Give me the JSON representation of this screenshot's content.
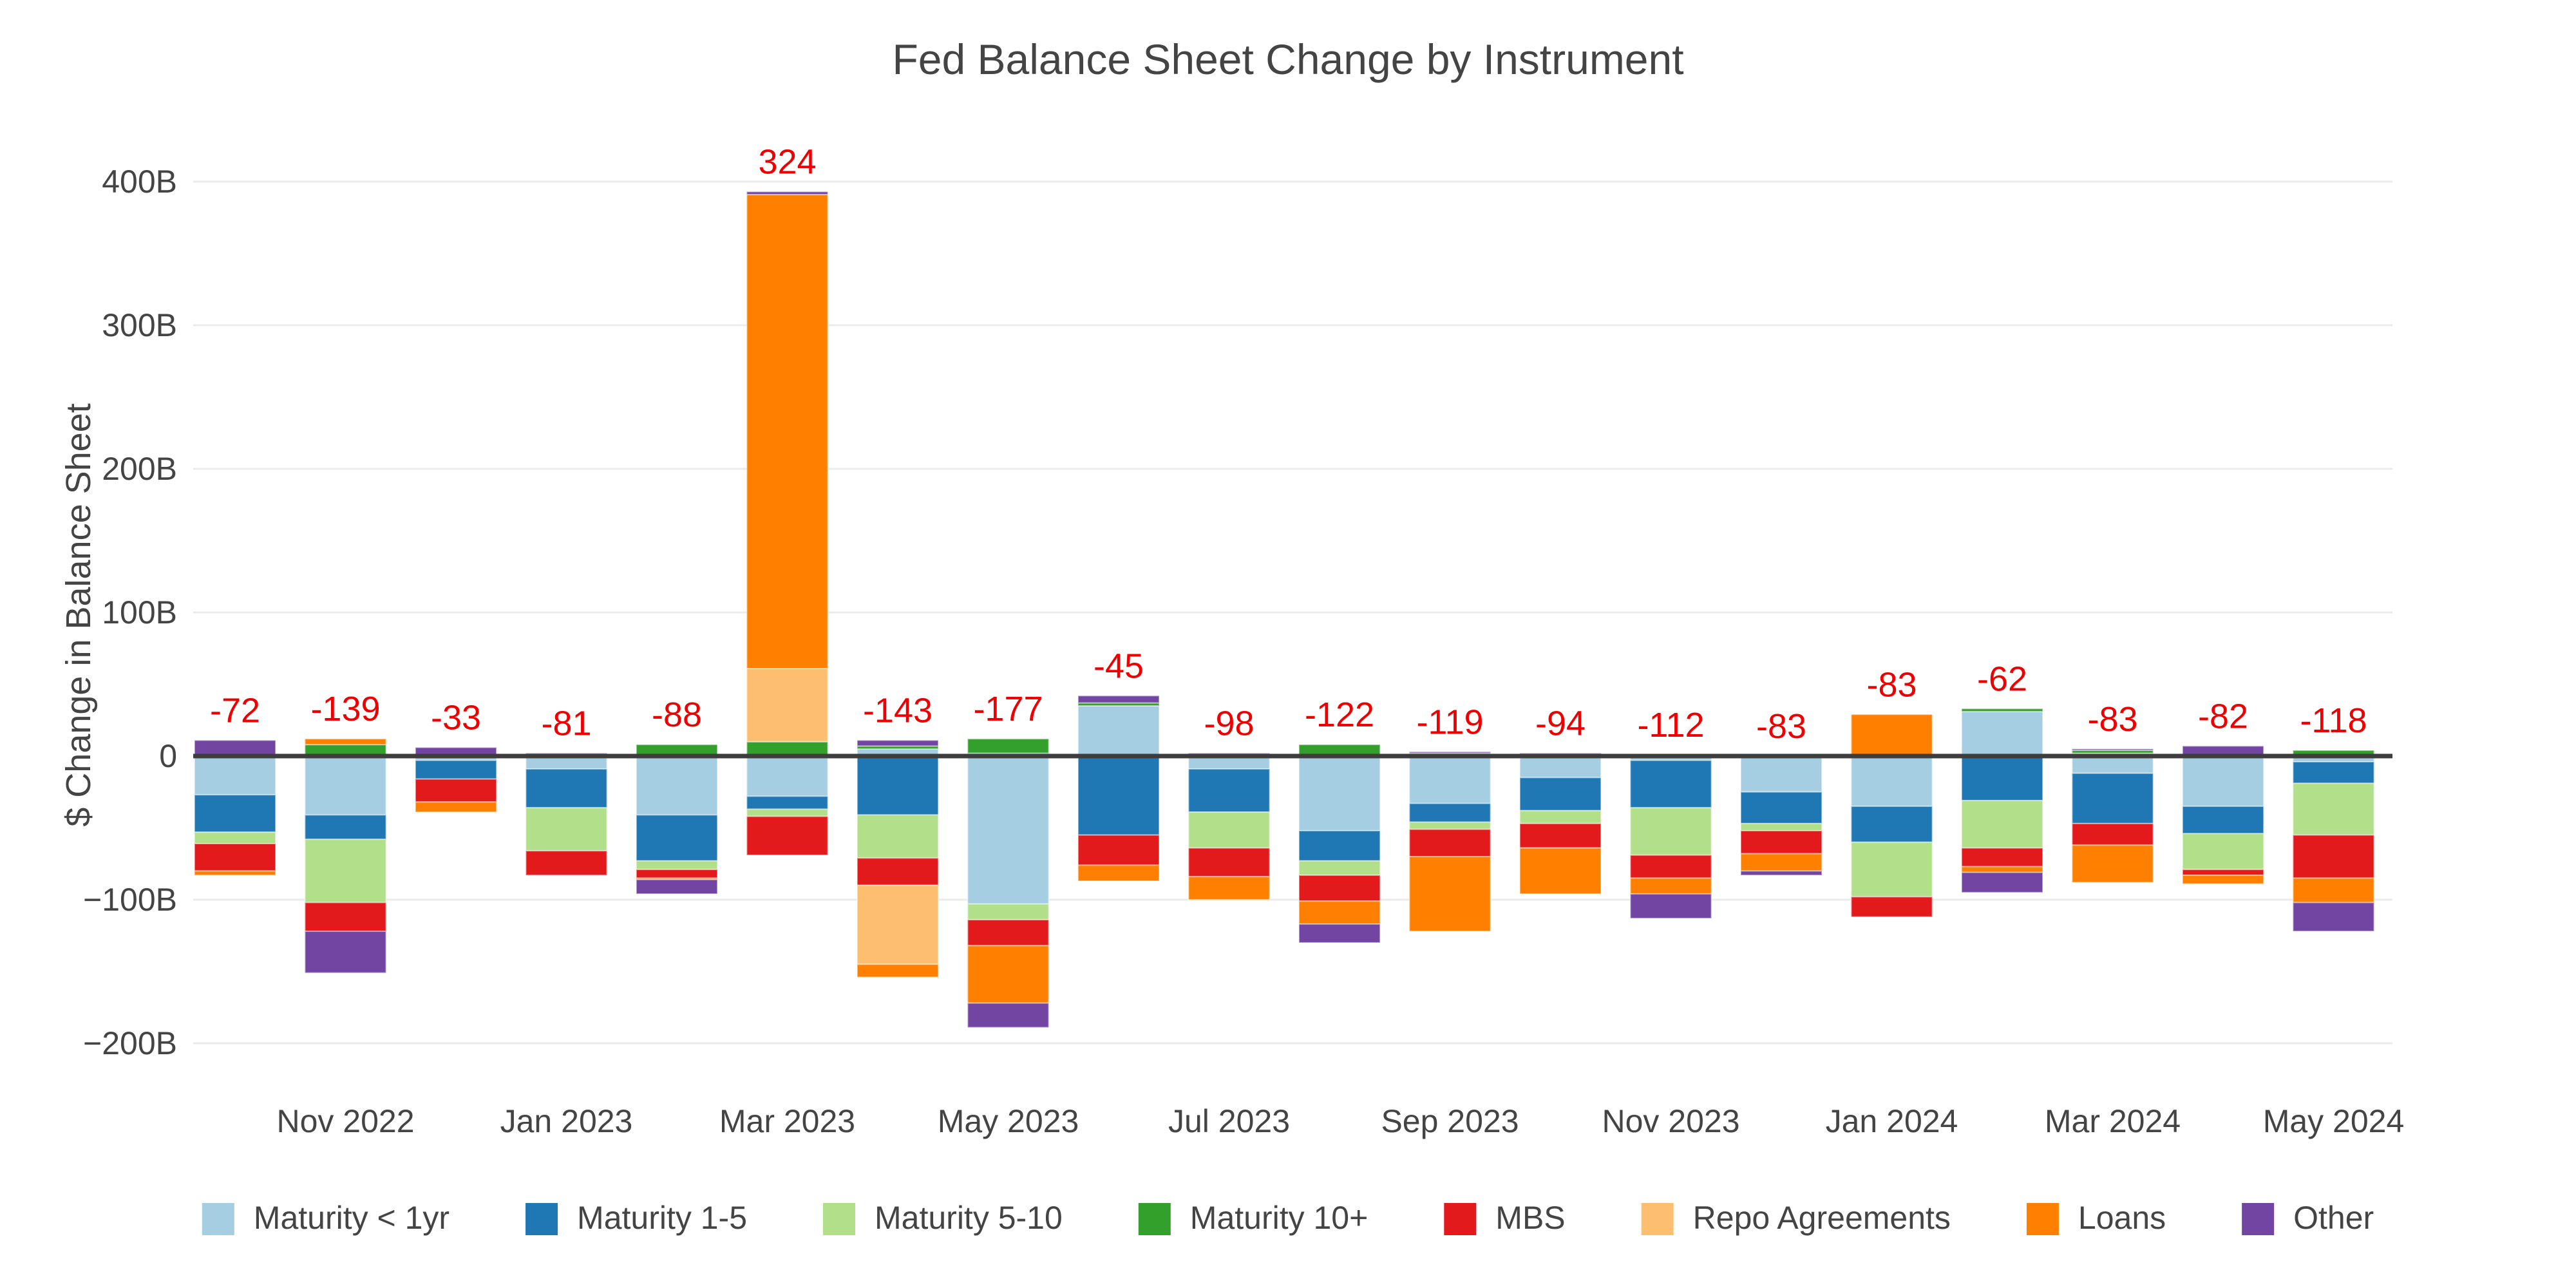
{
  "title": "Fed Balance Sheet Change by Instrument",
  "y_axis": {
    "title": "$ Change in Balance Sheet",
    "ticks": [
      {
        "label": "400B",
        "value": 400
      },
      {
        "label": "300B",
        "value": 300
      },
      {
        "label": "200B",
        "value": 200
      },
      {
        "label": "100B",
        "value": 100
      },
      {
        "label": "0",
        "value": 0
      },
      {
        "label": "−100B",
        "value": -100
      },
      {
        "label": "−200B",
        "value": -200
      }
    ]
  },
  "x_axis": {
    "tick_indices": [
      1,
      3,
      5,
      7,
      9,
      11,
      13,
      15,
      17,
      19
    ],
    "tick_labels": [
      "Nov 2022",
      "Jan 2023",
      "Mar 2023",
      "May 2023",
      "Jul 2023",
      "Sep 2023",
      "Nov 2023",
      "Jan 2024",
      "Mar 2024",
      "May 2024"
    ]
  },
  "style_colors": {
    "title_text": "#444444",
    "tick_text": "#444444",
    "total_label": "#ee0000",
    "gridline": "#ebebeb",
    "zero_line": "#3d3d3d",
    "background": "#ffffff"
  },
  "chart_data": {
    "type": "bar",
    "stacked": true,
    "title": "Fed Balance Sheet Change by Instrument",
    "ylabel": "$ Change in Balance Sheet",
    "ylim": [
      -240,
      440
    ],
    "grid": true,
    "legend_position": "bottom",
    "categories": [
      "Oct 2022",
      "Nov 2022",
      "Dec 2022",
      "Jan 2023",
      "Feb 2023",
      "Mar 2023",
      "Apr 2023",
      "May 2023",
      "Jun 2023",
      "Jul 2023",
      "Aug 2023",
      "Sep 2023",
      "Oct 2023",
      "Nov 2023",
      "Dec 2023",
      "Jan 2024",
      "Feb 2024",
      "Mar 2024",
      "Apr 2024",
      "May 2024"
    ],
    "series": [
      {
        "name": "Maturity < 1yr",
        "color": "#a6cee3",
        "values": [
          -27,
          -41,
          -3,
          -9,
          -41,
          -28,
          5,
          -103,
          35,
          -9,
          -52,
          -33,
          -15,
          -3,
          -25,
          -35,
          31,
          -12,
          -35,
          -4
        ]
      },
      {
        "name": "Maturity 1-5",
        "color": "#1f78b4",
        "values": [
          -26,
          -17,
          -13,
          -27,
          -32,
          -9,
          -41,
          2,
          -55,
          -30,
          -21,
          -13,
          -23,
          -33,
          -22,
          -25,
          -31,
          -35,
          -19,
          -15
        ]
      },
      {
        "name": "Maturity 5-10",
        "color": "#b2df8a",
        "values": [
          -8,
          -44,
          0,
          -30,
          -6,
          -5,
          -30,
          -11,
          0,
          -25,
          -10,
          -5,
          -9,
          -33,
          -5,
          -38,
          -33,
          2,
          -25,
          -36
        ]
      },
      {
        "name": "Maturity 10+",
        "color": "#33a02c",
        "values": [
          0,
          8,
          1,
          0,
          8,
          10,
          2,
          10,
          2,
          0,
          8,
          2,
          0,
          1,
          0,
          0,
          2,
          2,
          1,
          4
        ]
      },
      {
        "name": "MBS",
        "color": "#e31a1c",
        "values": [
          -19,
          -20,
          -16,
          -17,
          -6,
          -27,
          -19,
          -18,
          -21,
          -20,
          -18,
          -19,
          -17,
          -16,
          -16,
          -14,
          -13,
          -15,
          -4,
          -30
        ]
      },
      {
        "name": "Repo Agreements",
        "color": "#fdbf6f",
        "values": [
          0,
          0,
          0,
          0,
          0,
          51,
          -55,
          0,
          0,
          0,
          0,
          0,
          0,
          0,
          0,
          0,
          0,
          0,
          0,
          0
        ]
      },
      {
        "name": "Loans",
        "color": "#ff7f00",
        "values": [
          -3,
          4,
          -7,
          0,
          -1,
          330,
          -9,
          -40,
          -11,
          -16,
          -16,
          -52,
          -32,
          -11,
          -12,
          29,
          -4,
          -26,
          -6,
          -17
        ]
      },
      {
        "name": "Other",
        "color": "#7345a3",
        "values": [
          11,
          -29,
          5,
          2,
          -10,
          2,
          4,
          -17,
          5,
          2,
          -13,
          1,
          2,
          -17,
          -3,
          0,
          -14,
          1,
          6,
          -20
        ]
      }
    ],
    "totals": [
      -72,
      -139,
      -33,
      -81,
      -88,
      324,
      -143,
      -177,
      -45,
      -98,
      -122,
      -119,
      -94,
      -112,
      -83,
      -83,
      -62,
      -83,
      -82,
      -118
    ]
  }
}
